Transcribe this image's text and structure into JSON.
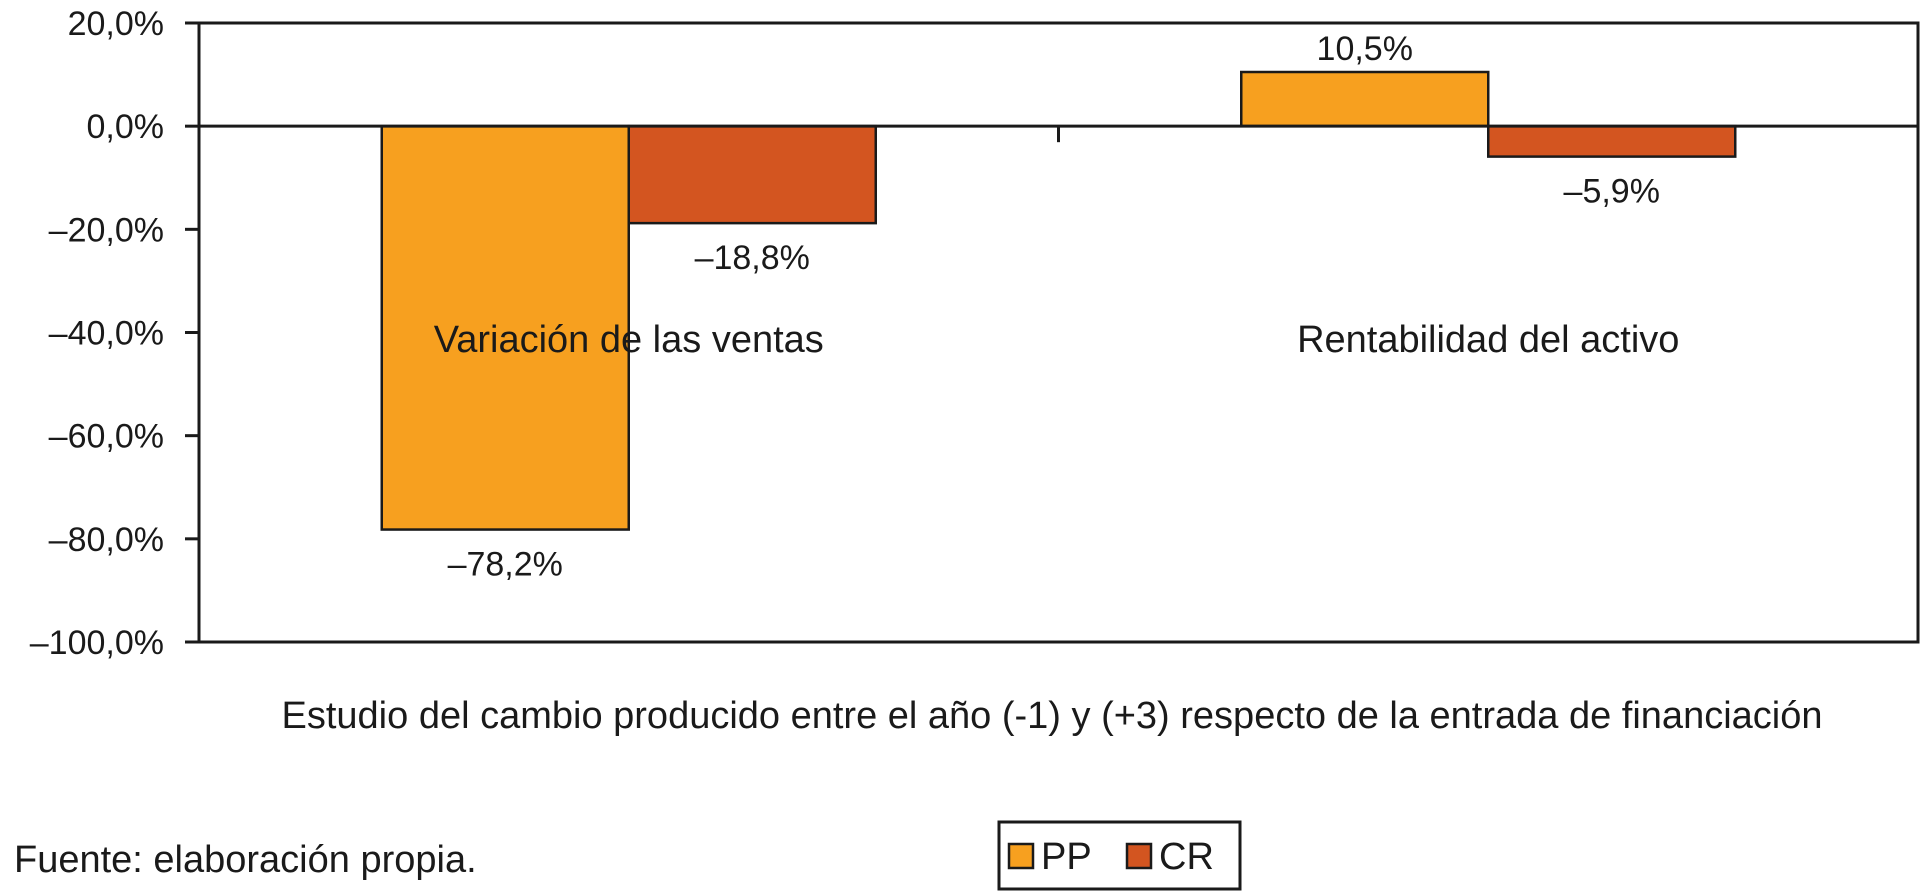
{
  "chart_data": {
    "type": "bar",
    "categories": [
      "Variación de las ventas",
      "Rentabilidad del activo"
    ],
    "series": [
      {
        "name": "PP",
        "values": [
          -78.2,
          10.5
        ],
        "labels": [
          "–78,2%",
          "10,5%"
        ]
      },
      {
        "name": "CR",
        "values": [
          -18.8,
          -5.9
        ],
        "labels": [
          "–18,8%",
          "–5,9%"
        ]
      }
    ],
    "xlabel": "Estudio del cambio producido entre el año (-1) y (+3) respecto de la entrada de financiación",
    "ylabel": "",
    "ylim": [
      -100,
      20
    ],
    "yticks": [
      20,
      0,
      -20,
      -40,
      -60,
      -80,
      -100
    ],
    "ytick_labels": [
      "20,0%",
      "0,0%",
      "–20,0%",
      "–40,0%",
      "–60,0%",
      "–80,0%",
      "–100,0%"
    ],
    "grid": false,
    "legend": {
      "position": "bottom-center",
      "entries": [
        "PP",
        "CR"
      ]
    },
    "colors": {
      "PP": "#F7A01F",
      "CR": "#D35520"
    }
  },
  "source_note": "Fuente: elaboración propia."
}
